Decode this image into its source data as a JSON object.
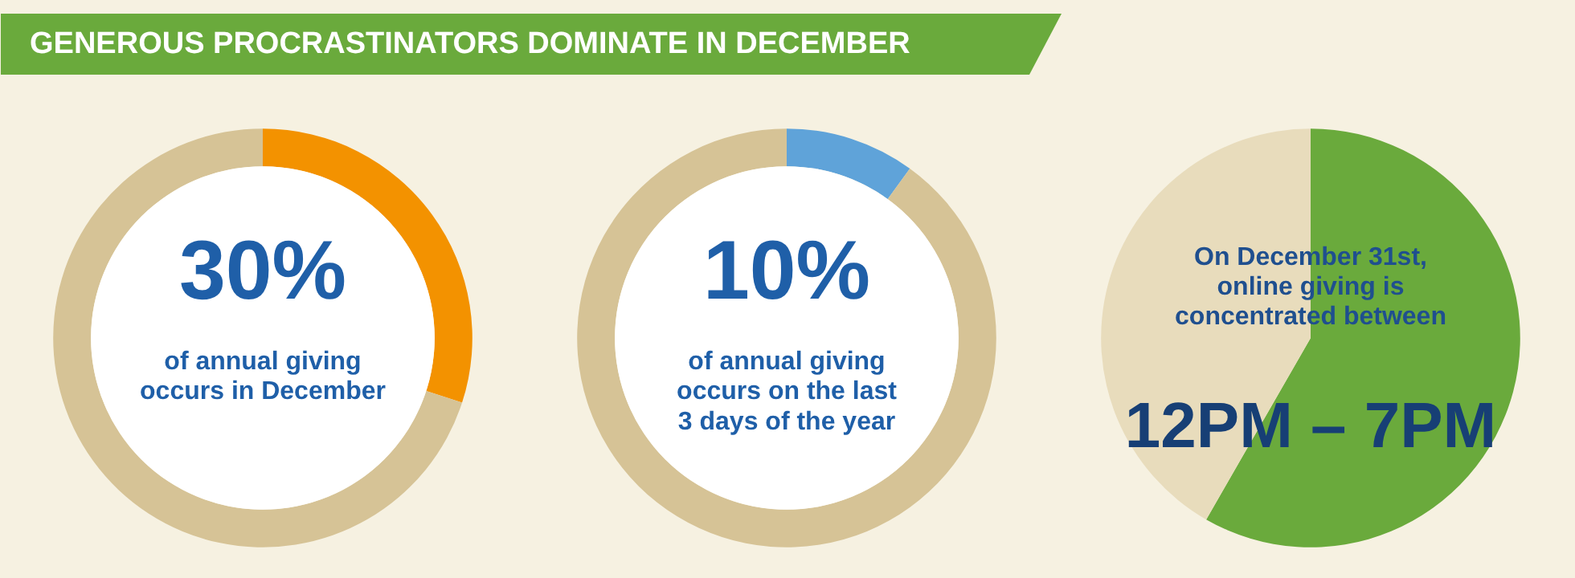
{
  "chart_data": [
    {
      "type": "donut",
      "title": "GENEROUS PROCRASTINATORS DOMINATE IN DECEMBER",
      "categories": [
        null,
        null
      ],
      "values": [
        30,
        70
      ],
      "colors": [
        "#f39200",
        "#d6c396"
      ],
      "annotations": [
        "30%",
        "of annual giving\noccurs in December"
      ]
    },
    {
      "type": "donut",
      "categories": [
        null,
        null
      ],
      "values": [
        10,
        90
      ],
      "colors": [
        "#5fa3d9",
        "#d6c396"
      ],
      "annotations": [
        "10%",
        "of annual giving\noccurs on the last\n3 days of the year"
      ]
    },
    {
      "type": "pie",
      "categories": [
        null,
        null
      ],
      "values": [
        58.3,
        41.7
      ],
      "colors": [
        "#6aaa3c",
        "#e8dcbc"
      ],
      "annotations": [
        "On December 31st,\nonline giving is\nconcentrated between",
        "12PM – 7PM"
      ]
    }
  ]
}
